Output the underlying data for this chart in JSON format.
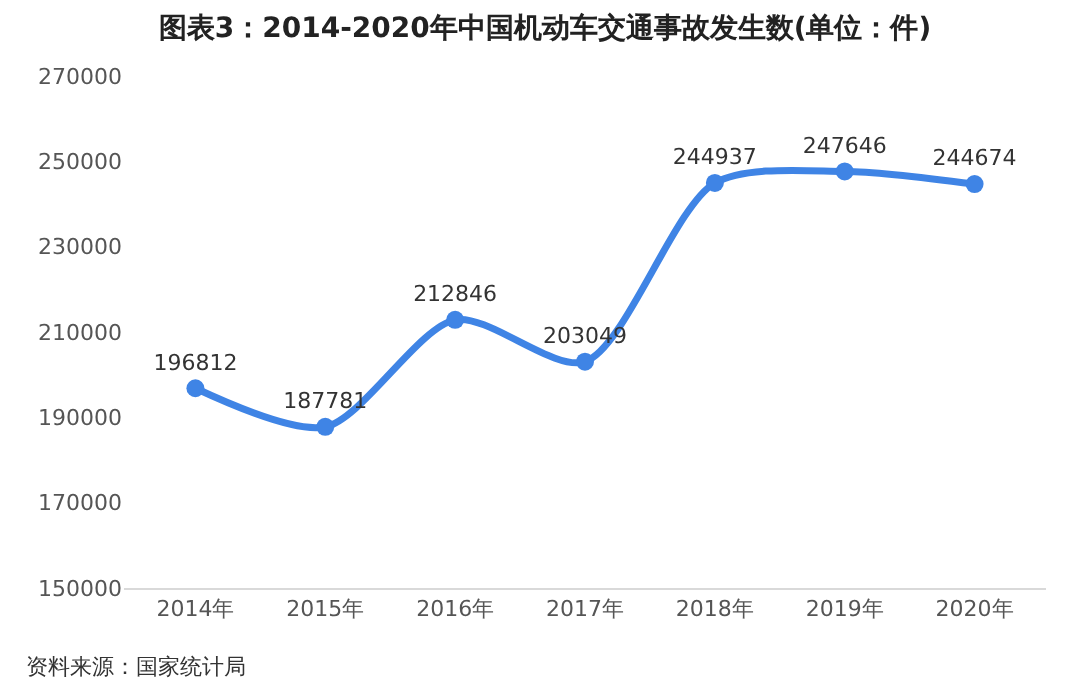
{
  "chart_data": {
    "type": "line",
    "title": "图表3：2014-2020年中国机动车交通事故发生数(单位：件)",
    "categories": [
      "2014年",
      "2015年",
      "2016年",
      "2017年",
      "2018年",
      "2019年",
      "2020年"
    ],
    "series": [
      {
        "color": "#3f84e5",
        "values": [
          196812,
          187781,
          212846,
          203049,
          244937,
          247646,
          244674
        ]
      }
    ],
    "ylim": [
      150000,
      270000
    ],
    "yticks": [
      150000,
      170000,
      190000,
      210000,
      230000,
      250000,
      270000
    ],
    "legend": false,
    "marker": "circle",
    "line_style": "solid",
    "data_labels": true,
    "annotations": [
      "资料来源：国家统计局"
    ]
  }
}
